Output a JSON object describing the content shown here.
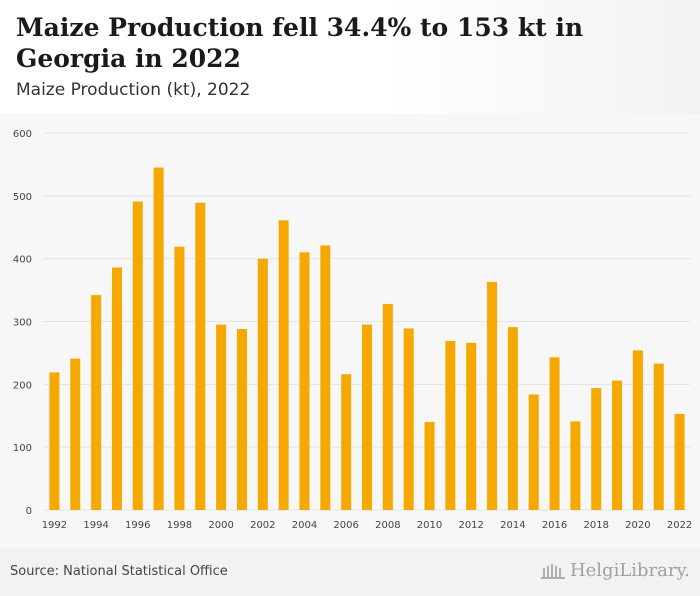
{
  "header": {
    "title": "Maize Production fell 34.4% to 153 kt in Georgia in 2022",
    "subtitle": "Maize Production (kt), 2022"
  },
  "footer": {
    "source": "Source: National Statistical Office",
    "brand": "HelgiLibrary.",
    "brand_icon": "library-building-icon"
  },
  "colors": {
    "bar": "#f5a800",
    "grid": "#e4e4e4",
    "axis_text": "#444444"
  },
  "chart_data": {
    "type": "bar",
    "title": "",
    "xlabel": "",
    "ylabel": "",
    "ylim": [
      0,
      600
    ],
    "yticks": [
      0,
      100,
      200,
      300,
      400,
      500,
      600
    ],
    "grid": true,
    "categories": [
      "1992",
      "1993",
      "1994",
      "1995",
      "1996",
      "1997",
      "1998",
      "1999",
      "2000",
      "2001",
      "2002",
      "2003",
      "2004",
      "2005",
      "2006",
      "2007",
      "2008",
      "2009",
      "2010",
      "2011",
      "2012",
      "2013",
      "2014",
      "2015",
      "2016",
      "2017",
      "2018",
      "2019",
      "2020",
      "2021",
      "2022"
    ],
    "xtick_labels": [
      "1992",
      "1994",
      "1996",
      "1998",
      "2000",
      "2002",
      "2004",
      "2006",
      "2008",
      "2010",
      "2012",
      "2014",
      "2016",
      "2018",
      "2020",
      "2022"
    ],
    "values": [
      219,
      241,
      342,
      386,
      491,
      545,
      419,
      489,
      295,
      288,
      400,
      461,
      410,
      421,
      216,
      295,
      328,
      289,
      140,
      269,
      266,
      363,
      291,
      184,
      243,
      141,
      194,
      206,
      254,
      233,
      153
    ]
  }
}
